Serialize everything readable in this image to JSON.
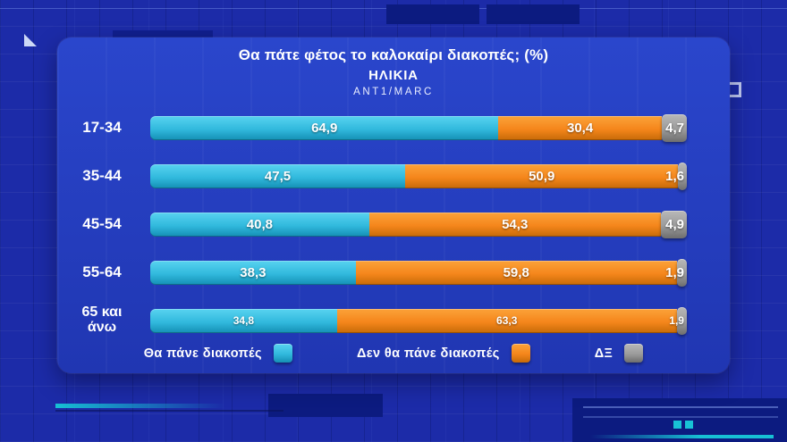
{
  "chart_data": {
    "type": "bar",
    "orientation": "horizontal",
    "stacked": true,
    "title": "Θα πάτε φέτος το καλοκαίρι διακοπές; (%)",
    "subtitle": "ΗΛΙΚΙΑ",
    "source": "ANT1/MARC",
    "categories": [
      "17-34",
      "35-44",
      "45-54",
      "55-64",
      "65 και άνω"
    ],
    "categories_display": [
      "17-34",
      "35-44",
      "45-54",
      "55-64",
      "65 και\nάνω"
    ],
    "xlim": [
      0,
      100
    ],
    "legend_position": "bottom",
    "series": [
      {
        "key": "yes",
        "name": "Θα πάνε διακοπές",
        "color": "#31b9dd",
        "color_light": "#58d3f0",
        "color_dark": "#148fb4",
        "values": [
          64.9,
          47.5,
          40.8,
          38.3,
          34.8
        ]
      },
      {
        "key": "no",
        "name": "Δεν θα πάνε διακοπές",
        "color": "#f5861b",
        "color_light": "#fba239",
        "color_dark": "#c66a08",
        "values": [
          30.4,
          50.9,
          54.3,
          59.8,
          63.3
        ]
      },
      {
        "key": "dk",
        "name": "ΔΞ",
        "color": "#9b9b9b",
        "color_light": "#b8b8b8",
        "color_dark": "#6e6e6e",
        "values": [
          4.7,
          1.6,
          4.9,
          1.9,
          1.9
        ]
      }
    ],
    "value_labels": [
      [
        "64,9",
        "30,4",
        "4,7"
      ],
      [
        "47,5",
        "50,9",
        "1,6"
      ],
      [
        "40,8",
        "54,3",
        "4,9"
      ],
      [
        "38,3",
        "59,8",
        "1,9"
      ],
      [
        "34,8",
        "63,3",
        "1,9"
      ]
    ]
  },
  "background": {
    "base_color": "#1c2ba8",
    "panel_color": "#2340c4",
    "accent_teal": "#17c0d4",
    "dark_rect_color": "#0c1b80"
  }
}
